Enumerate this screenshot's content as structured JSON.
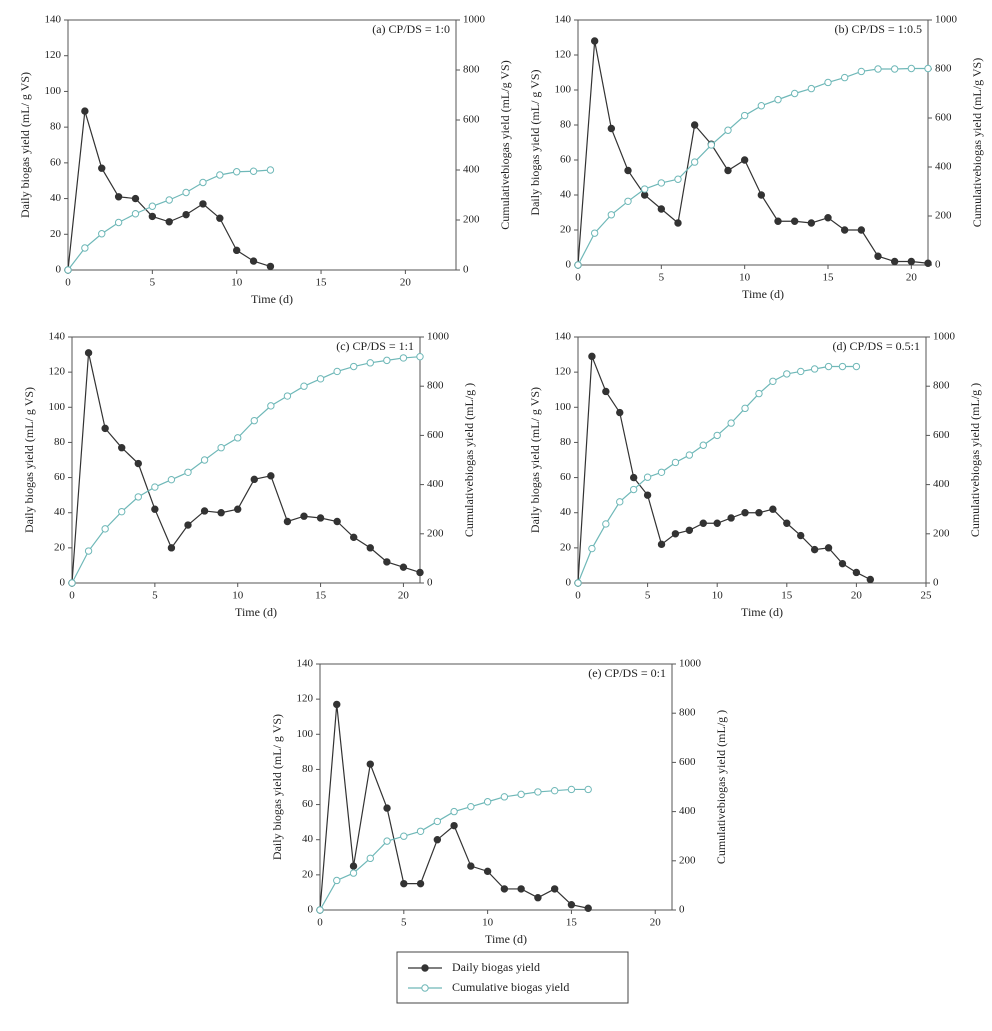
{
  "chart_data": [
    {
      "type": "line",
      "annotation": "(a) CP/DS = 1:0",
      "xlabel": "Time (d)",
      "ylabel": "Daily biogas yield (mL/ g VS)",
      "y2label": "Cumulativebiogas yield (mL/g VS)",
      "x": [
        0,
        1,
        2,
        3,
        4,
        5,
        6,
        7,
        8,
        9,
        10,
        11,
        12
      ],
      "xlim": [
        0,
        23
      ],
      "xticks": [
        0,
        5,
        10,
        15,
        20
      ],
      "ylim": [
        0,
        140
      ],
      "yticks": [
        0,
        20,
        40,
        60,
        80,
        100,
        120,
        140
      ],
      "y2lim": [
        0,
        1000
      ],
      "y2ticks": [
        0,
        200,
        400,
        600,
        800,
        1000
      ],
      "series": [
        {
          "name": "Daily biogas yield",
          "color": "#333333",
          "marker_fill": "#333333",
          "values": [
            0,
            89,
            57,
            41,
            40,
            30,
            27,
            31,
            37,
            29,
            11,
            5,
            2
          ]
        },
        {
          "name": "Cumulative biogas yield",
          "color": "#6fb8b8",
          "marker_fill": "#ffffff",
          "axis": "y2",
          "values": [
            0,
            88,
            145,
            190,
            225,
            255,
            280,
            310,
            350,
            380,
            393,
            395,
            400
          ]
        }
      ]
    },
    {
      "type": "line",
      "annotation": "(b) CP/DS = 1:0.5",
      "xlabel": "Time (d)",
      "ylabel": "Daily biogas yield (mL/ g VS)",
      "y2label": "Cumulativebiogas yield (mL/g VS)",
      "x": [
        0,
        1,
        2,
        3,
        4,
        5,
        6,
        7,
        8,
        9,
        10,
        11,
        12,
        13,
        14,
        15,
        16,
        17,
        18,
        19,
        20,
        21
      ],
      "xlim": [
        0,
        21
      ],
      "xticks": [
        0,
        5,
        10,
        15,
        20
      ],
      "ylim": [
        0,
        140
      ],
      "yticks": [
        0,
        20,
        40,
        60,
        80,
        100,
        120,
        140
      ],
      "y2lim": [
        0,
        1000
      ],
      "y2ticks": [
        0,
        200,
        400,
        600,
        800,
        1000
      ],
      "series": [
        {
          "name": "Daily biogas yield",
          "color": "#333333",
          "marker_fill": "#333333",
          "values": [
            0,
            128,
            78,
            54,
            40,
            32,
            24,
            80,
            69,
            54,
            60,
            40,
            25,
            25,
            24,
            27,
            20,
            20,
            5,
            2,
            2,
            1
          ]
        },
        {
          "name": "Cumulative biogas yield",
          "color": "#6fb8b8",
          "marker_fill": "#ffffff",
          "axis": "y2",
          "values": [
            0,
            130,
            205,
            260,
            310,
            335,
            350,
            420,
            490,
            550,
            610,
            650,
            675,
            700,
            720,
            745,
            765,
            790,
            800,
            800,
            802,
            802
          ]
        }
      ]
    },
    {
      "type": "line",
      "annotation": "(c) CP/DS = 1:1",
      "xlabel": "Time (d)",
      "ylabel": "Daily biogas yield (mL/ g VS)",
      "y2label": "Cumulativebiogas yield (mL/g )",
      "x": [
        0,
        1,
        2,
        3,
        4,
        5,
        6,
        7,
        8,
        9,
        10,
        11,
        12,
        13,
        14,
        15,
        16,
        17,
        18,
        19,
        20,
        21
      ],
      "xlim": [
        0,
        21
      ],
      "xticks": [
        0,
        5,
        10,
        15,
        20
      ],
      "ylim": [
        0,
        140
      ],
      "yticks": [
        0,
        20,
        40,
        60,
        80,
        100,
        120,
        140
      ],
      "y2lim": [
        0,
        1000
      ],
      "y2ticks": [
        0,
        200,
        400,
        600,
        800,
        1000
      ],
      "series": [
        {
          "name": "Daily biogas yield",
          "color": "#333333",
          "marker_fill": "#333333",
          "values": [
            0,
            131,
            88,
            77,
            68,
            42,
            20,
            33,
            41,
            40,
            42,
            59,
            61,
            35,
            38,
            37,
            35,
            26,
            20,
            12,
            9,
            6
          ]
        },
        {
          "name": "Cumulative biogas yield",
          "color": "#6fb8b8",
          "marker_fill": "#ffffff",
          "axis": "y2",
          "values": [
            0,
            130,
            220,
            290,
            350,
            390,
            420,
            450,
            500,
            550,
            590,
            660,
            720,
            760,
            800,
            830,
            860,
            880,
            895,
            905,
            915,
            920
          ]
        }
      ]
    },
    {
      "type": "line",
      "annotation": "(d) CP/DS = 0.5:1",
      "xlabel": "Time (d)",
      "ylabel": "Daily biogas yield (mL/ g VS)",
      "y2label": "Cumulativebiogas yield (mL/g )",
      "x": [
        0,
        1,
        2,
        3,
        4,
        5,
        6,
        7,
        8,
        9,
        10,
        11,
        12,
        13,
        14,
        15,
        16,
        17,
        18,
        19,
        20,
        21
      ],
      "xlim": [
        0,
        25
      ],
      "xticks": [
        0,
        5,
        10,
        15,
        20,
        25
      ],
      "ylim": [
        0,
        140
      ],
      "yticks": [
        0,
        20,
        40,
        60,
        80,
        100,
        120,
        140
      ],
      "y2lim": [
        0,
        1000
      ],
      "y2ticks": [
        0,
        200,
        400,
        600,
        800,
        1000
      ],
      "series": [
        {
          "name": "Daily biogas yield",
          "color": "#333333",
          "marker_fill": "#333333",
          "values": [
            0,
            129,
            109,
            97,
            60,
            50,
            22,
            28,
            30,
            34,
            34,
            37,
            40,
            40,
            42,
            34,
            27,
            19,
            20,
            11,
            6,
            2
          ]
        },
        {
          "name": "Cumulative biogas yield",
          "color": "#6fb8b8",
          "marker_fill": "#ffffff",
          "axis": "y2",
          "values": [
            0,
            140,
            240,
            330,
            380,
            430,
            450,
            490,
            520,
            560,
            600,
            650,
            710,
            770,
            820,
            850,
            860,
            870,
            880,
            880,
            880,
            null
          ]
        }
      ]
    },
    {
      "type": "line",
      "annotation": "(e) CP/DS = 0:1",
      "xlabel": "Time (d)",
      "ylabel": "Daily biogas yield (mL/ g VS)",
      "y2label": "Cumulativebiogas yield (mL/g )",
      "x": [
        0,
        1,
        2,
        3,
        4,
        5,
        6,
        7,
        8,
        9,
        10,
        11,
        12,
        13,
        14,
        15,
        16
      ],
      "xlim": [
        0,
        21
      ],
      "xticks": [
        0,
        5,
        10,
        15,
        20
      ],
      "ylim": [
        0,
        140
      ],
      "yticks": [
        0,
        20,
        40,
        60,
        80,
        100,
        120,
        140
      ],
      "y2lim": [
        0,
        1000
      ],
      "y2ticks": [
        0,
        200,
        400,
        600,
        800,
        1000
      ],
      "series": [
        {
          "name": "Daily biogas yield",
          "color": "#333333",
          "marker_fill": "#333333",
          "values": [
            0,
            117,
            25,
            83,
            58,
            15,
            15,
            40,
            48,
            25,
            22,
            12,
            12,
            7,
            12,
            3,
            1
          ]
        },
        {
          "name": "Cumulative biogas yield",
          "color": "#6fb8b8",
          "marker_fill": "#ffffff",
          "axis": "y2",
          "values": [
            0,
            120,
            150,
            210,
            280,
            300,
            320,
            360,
            400,
            420,
            440,
            460,
            470,
            480,
            485,
            490,
            490
          ]
        }
      ]
    }
  ]
}
